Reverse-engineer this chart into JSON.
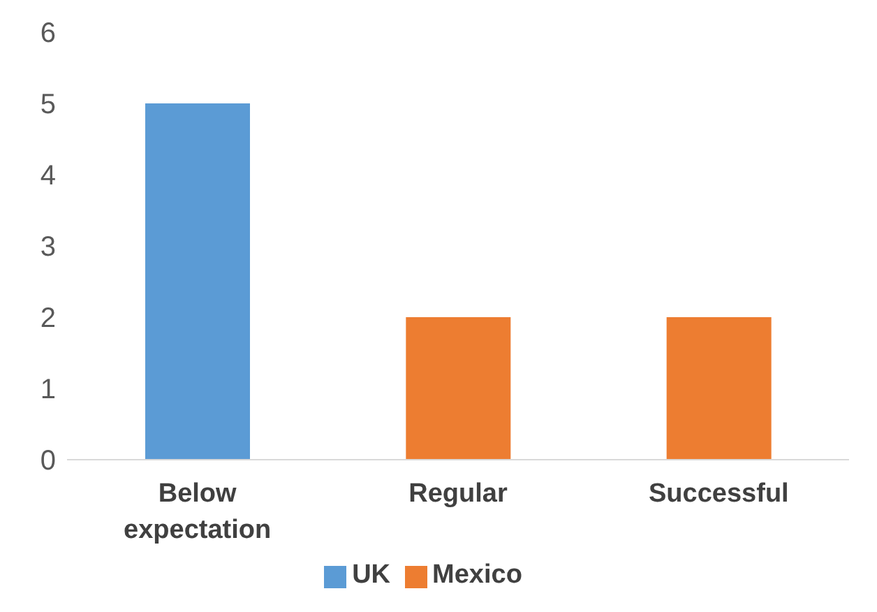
{
  "chart_data": {
    "type": "bar",
    "categories": [
      "Below expectation",
      "Regular",
      "Successful"
    ],
    "series": [
      {
        "name": "UK",
        "color": "#5b9bd5",
        "values": [
          5,
          null,
          null
        ]
      },
      {
        "name": "Mexico",
        "color": "#ed7d31",
        "values": [
          null,
          2,
          2
        ]
      }
    ],
    "stacked": true,
    "ylim": [
      0,
      6
    ],
    "yticks": [
      0,
      1,
      2,
      3,
      4,
      5,
      6
    ],
    "grid": false,
    "legend": "bottom"
  }
}
